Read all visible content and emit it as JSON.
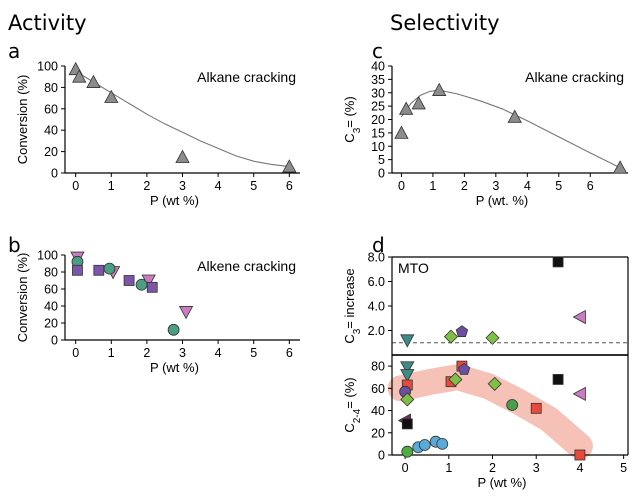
{
  "headers": {
    "left": "Activity",
    "right": "Selectivity"
  },
  "chart_data": [
    {
      "panel": "a",
      "type": "scatter",
      "annotation": "Alkane cracking",
      "xlabel": "P (wt %)",
      "ylabel": "Conversion (%)",
      "xlim": [
        -0.3,
        6.3
      ],
      "ylim": [
        0,
        100
      ],
      "xticks": [
        "0",
        "1",
        "2",
        "3",
        "4",
        "5",
        "6"
      ],
      "yticks": [
        "0",
        "20",
        "40",
        "60",
        "80",
        "100"
      ],
      "series": [
        {
          "marker": "triangle",
          "color": "#8c8c8c",
          "x": [
            0.0,
            0.1,
            0.5,
            1.0,
            3.0,
            6.0
          ],
          "y": [
            97,
            90,
            85,
            71,
            15,
            6
          ]
        }
      ],
      "fit": {
        "x": [
          0,
          0.5,
          1,
          1.5,
          2,
          2.5,
          3,
          3.5,
          4,
          4.5,
          5,
          5.5,
          6
        ],
        "y": [
          95,
          85,
          75,
          65,
          55,
          46,
          38,
          30,
          23,
          16,
          11,
          8,
          6
        ]
      }
    },
    {
      "panel": "b",
      "type": "scatter",
      "annotation": "Alkene cracking",
      "xlabel": "P (wt %)",
      "ylabel": "Conversion (%)",
      "xlim": [
        -0.3,
        6.3
      ],
      "ylim": [
        0,
        100
      ],
      "xticks": [
        "0",
        "1",
        "2",
        "3",
        "4",
        "5",
        "6"
      ],
      "yticks": [
        "0",
        "20",
        "40",
        "60",
        "80",
        "100"
      ],
      "series": [
        {
          "marker": "triangle-down",
          "color": "#c77dbf",
          "x": [
            0.05,
            1.05,
            2.05,
            3.1
          ],
          "y": [
            97,
            80,
            70,
            33
          ]
        },
        {
          "marker": "circle",
          "color": "#4a9e82",
          "x": [
            0.05,
            0.95,
            1.85,
            2.75
          ],
          "y": [
            92,
            84,
            65,
            12
          ]
        },
        {
          "marker": "square",
          "color": "#7b55a8",
          "x": [
            0.05,
            0.65,
            1.5,
            2.15
          ],
          "y": [
            82,
            82,
            70,
            62
          ]
        }
      ]
    },
    {
      "panel": "c",
      "type": "scatter",
      "annotation": "Alkane cracking",
      "xlabel": "P (wt. %)",
      "ylabel": "C3= (%)",
      "xlim": [
        -0.3,
        7.2
      ],
      "ylim": [
        0,
        40
      ],
      "xticks": [
        "0",
        "1",
        "2",
        "3",
        "4",
        "5",
        "6"
      ],
      "yticks": [
        "0",
        "5",
        "10",
        "15",
        "20",
        "25",
        "30",
        "35",
        "40"
      ],
      "series": [
        {
          "marker": "triangle",
          "color": "#8c8c8c",
          "x": [
            0.0,
            0.15,
            0.55,
            1.2,
            3.6,
            6.95
          ],
          "y": [
            15,
            24,
            26,
            31,
            21,
            2
          ]
        }
      ],
      "fit": {
        "x": [
          0,
          0.3,
          0.6,
          0.9,
          1.2,
          1.8,
          2.5,
          3.2,
          4.0,
          5.0,
          6.0,
          6.95
        ],
        "y": [
          21,
          26,
          29,
          30.5,
          31,
          29.5,
          27,
          24,
          19.5,
          13.5,
          7.5,
          2
        ]
      }
    },
    {
      "panel": "d-top",
      "type": "scatter",
      "annotation": "MTO",
      "ylabel": "C3= increase",
      "xlim": [
        -0.3,
        5.1
      ],
      "ylim": [
        0,
        8
      ],
      "yticks": [
        "2.0",
        "4.0",
        "6.0",
        "8.0"
      ],
      "reference_line": 1.0,
      "points": [
        {
          "marker": "triangle-down",
          "color": "#3e8a86",
          "x": 0.05,
          "y": 1.2
        },
        {
          "marker": "diamond",
          "color": "#7fbf45",
          "x": 1.05,
          "y": 1.5
        },
        {
          "marker": "pentagon",
          "color": "#6b4fa0",
          "x": 1.3,
          "y": 1.9
        },
        {
          "marker": "diamond",
          "color": "#7fbf45",
          "x": 2.0,
          "y": 1.4
        },
        {
          "marker": "square",
          "color": "#111111",
          "x": 3.5,
          "y": 7.6
        },
        {
          "marker": "triangle-left",
          "color": "#c77dbf",
          "x": 4.0,
          "y": 3.1
        }
      ]
    },
    {
      "panel": "d-bottom",
      "type": "scatter",
      "xlabel": "P (wt %)",
      "ylabel": "C2-4= (%)",
      "xlim": [
        -0.3,
        5.1
      ],
      "ylim": [
        0,
        90
      ],
      "xticks": [
        "0",
        "1",
        "2",
        "3",
        "4",
        "5"
      ],
      "yticks": [
        "0",
        "20",
        "40",
        "60",
        "80"
      ],
      "band": {
        "x": [
          -0.1,
          0.6,
          1.2,
          1.9,
          2.6,
          3.3,
          4.0
        ],
        "y": [
          60,
          66,
          70,
          62,
          48,
          32,
          8
        ]
      },
      "points": [
        {
          "marker": "triangle-down",
          "color": "#3e8a86",
          "x": 0.05,
          "y": 79
        },
        {
          "marker": "triangle-down",
          "color": "#3e8a86",
          "x": 0.05,
          "y": 72
        },
        {
          "marker": "square",
          "color": "#e8493c",
          "x": 0.05,
          "y": 63
        },
        {
          "marker": "circle",
          "color": "#6b4fa0",
          "x": 0.0,
          "y": 57
        },
        {
          "marker": "diamond",
          "color": "#7fbf45",
          "x": 0.05,
          "y": 50
        },
        {
          "marker": "triangle-left",
          "color": "#7b2d6a",
          "x": 0.0,
          "y": 31
        },
        {
          "marker": "square",
          "color": "#111111",
          "x": 0.05,
          "y": 28
        },
        {
          "marker": "circle",
          "color": "#4fae3f",
          "x": 0.05,
          "y": 3
        },
        {
          "marker": "circle",
          "color": "#5aa9d6",
          "x": 0.3,
          "y": 7
        },
        {
          "marker": "circle",
          "color": "#5aa9d6",
          "x": 0.45,
          "y": 9
        },
        {
          "marker": "circle",
          "color": "#5aa9d6",
          "x": 0.7,
          "y": 12
        },
        {
          "marker": "circle",
          "color": "#5aa9d6",
          "x": 0.85,
          "y": 10
        },
        {
          "marker": "square",
          "color": "#e8493c",
          "x": 1.05,
          "y": 66
        },
        {
          "marker": "diamond",
          "color": "#7fbf45",
          "x": 1.15,
          "y": 68
        },
        {
          "marker": "square",
          "color": "#e8493c",
          "x": 1.3,
          "y": 80
        },
        {
          "marker": "pentagon",
          "color": "#6b4fa0",
          "x": 1.35,
          "y": 77
        },
        {
          "marker": "diamond",
          "color": "#7fbf45",
          "x": 2.05,
          "y": 64
        },
        {
          "marker": "circle",
          "color": "#4a9e4a",
          "x": 2.45,
          "y": 45
        },
        {
          "marker": "square",
          "color": "#e8493c",
          "x": 3.0,
          "y": 42
        },
        {
          "marker": "square",
          "color": "#111111",
          "x": 3.5,
          "y": 68
        },
        {
          "marker": "triangle-left",
          "color": "#c77dbf",
          "x": 4.0,
          "y": 55
        },
        {
          "marker": "square",
          "color": "#e8493c",
          "x": 4.0,
          "y": 0
        }
      ]
    }
  ]
}
